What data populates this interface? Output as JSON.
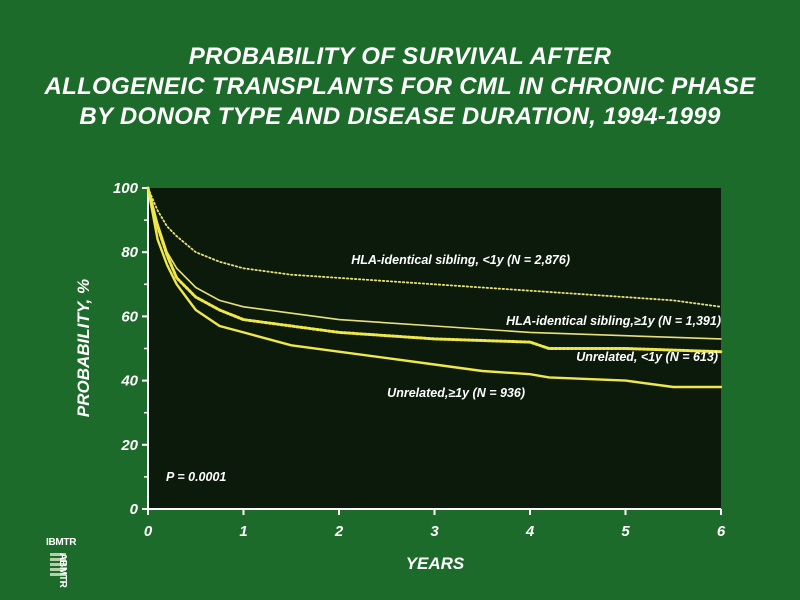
{
  "title_lines": [
    "PROBABILITY OF SURVIVAL AFTER",
    "ALLOGENEIC TRANSPLANTS FOR CML IN CHRONIC PHASE",
    "BY DONOR TYPE AND DISEASE DURATION, 1994-1999"
  ],
  "colors": {
    "background": "#1d6b2a",
    "plot_area": "#0c1a0c",
    "curve": "#e6e07a",
    "curve_bright": "#f0e84a",
    "text": "#ffffff"
  },
  "logo": {
    "line1": "IBMTR",
    "line2": "ABMTR",
    "icon": "registry-logo-icon"
  },
  "chart_data": {
    "type": "line",
    "title": "PROBABILITY OF SURVIVAL AFTER ALLOGENEIC TRANSPLANTS FOR CML IN CHRONIC PHASE BY DONOR TYPE AND DISEASE DURATION, 1994-1999",
    "xlabel": "YEARS",
    "ylabel": "PROBABILITY, %",
    "xlim": [
      0,
      6
    ],
    "ylim": [
      0,
      100
    ],
    "xticks": [
      "0",
      "1",
      "2",
      "3",
      "4",
      "5",
      "6"
    ],
    "yticks": [
      "0",
      "20",
      "40",
      "60",
      "80",
      "100"
    ],
    "grid": false,
    "legend": "inline labels",
    "annotation": "P = 0.0001",
    "series": [
      {
        "name": "HLA-identical sibling, <1y (N = 2,876)",
        "style": "dotted",
        "x": [
          0,
          0.1,
          0.2,
          0.3,
          0.5,
          0.75,
          1,
          1.5,
          2,
          3,
          4,
          5,
          5.5,
          6
        ],
        "y": [
          100,
          93,
          88,
          85,
          80,
          77,
          75,
          73,
          72,
          70,
          68,
          66,
          65,
          63
        ]
      },
      {
        "name": "HLA-identical sibling, ≥1y (N = 1,391)",
        "style": "solid-thin",
        "x": [
          0,
          0.1,
          0.2,
          0.3,
          0.5,
          0.75,
          1,
          1.5,
          2,
          3,
          4,
          5,
          6
        ],
        "y": [
          100,
          89,
          80,
          75,
          69,
          65,
          63,
          61,
          59,
          57,
          55,
          54,
          53
        ]
      },
      {
        "name": "Unrelated, <1y (N = 613)",
        "style": "dashed-dotted",
        "x": [
          0,
          0.1,
          0.2,
          0.3,
          0.5,
          0.75,
          1,
          1.5,
          2,
          3,
          4,
          4.2,
          5,
          6
        ],
        "y": [
          100,
          88,
          79,
          72,
          66,
          62,
          59,
          57,
          55,
          53,
          52,
          50,
          50,
          49
        ]
      },
      {
        "name": "Unrelated, ≥1y (N = 936)",
        "style": "solid-thick",
        "x": [
          0,
          0.1,
          0.2,
          0.3,
          0.4,
          0.5,
          0.75,
          1,
          1.5,
          2,
          2.5,
          3,
          3.5,
          4,
          4.2,
          5,
          5.5,
          6
        ],
        "y": [
          100,
          84,
          76,
          70,
          66,
          62,
          57,
          55,
          51,
          49,
          47,
          45,
          43,
          42,
          41,
          40,
          38,
          38
        ]
      }
    ],
    "labels": [
      "HLA-identical sibling, <1y (N = 2,876)",
      "HLA-identical sibling,≥1y (N = 1,391)",
      "Unrelated, <1y (N = 613)",
      "Unrelated,≥1y (N = 936)"
    ]
  }
}
